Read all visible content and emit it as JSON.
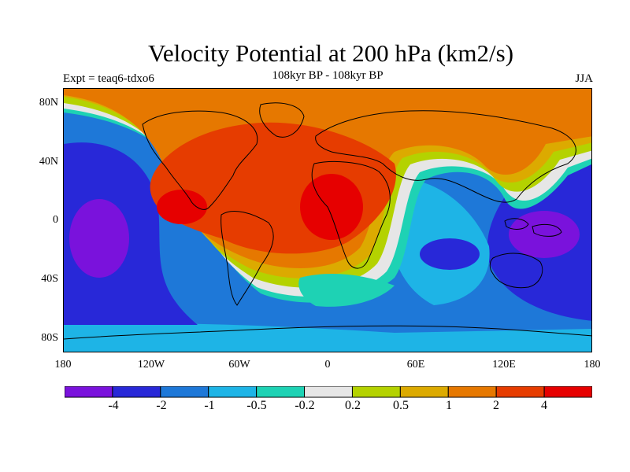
{
  "title": "Velocity Potential at 200 hPa (km2/s)",
  "subtitle": "108kyr BP - 108kyr BP",
  "experiment": "Expt = teaq6-tdxo6",
  "season": "JJA",
  "map": {
    "projection": "cylindrical equidistant",
    "lat_range": [
      -90,
      90
    ],
    "lon_range": [
      -180,
      180
    ],
    "lat_labels": [
      "80N",
      "40N",
      "0",
      "40S",
      "80S"
    ],
    "lon_labels": [
      "180",
      "120W",
      "60W",
      "0",
      "60E",
      "120E",
      "180"
    ],
    "coastlines": true
  },
  "colorbar": {
    "colors": [
      "#7a12dc",
      "#2828d8",
      "#1e78d8",
      "#1eb4e6",
      "#1ed2b4",
      "#e6e6e6",
      "#b4d200",
      "#dcaa00",
      "#e67800",
      "#e63c00",
      "#e60000"
    ],
    "labels": [
      "-4",
      "-2",
      "-1",
      "-0.5",
      "-0.2",
      "0.2",
      "0.5",
      "1",
      "2",
      "4"
    ]
  }
}
